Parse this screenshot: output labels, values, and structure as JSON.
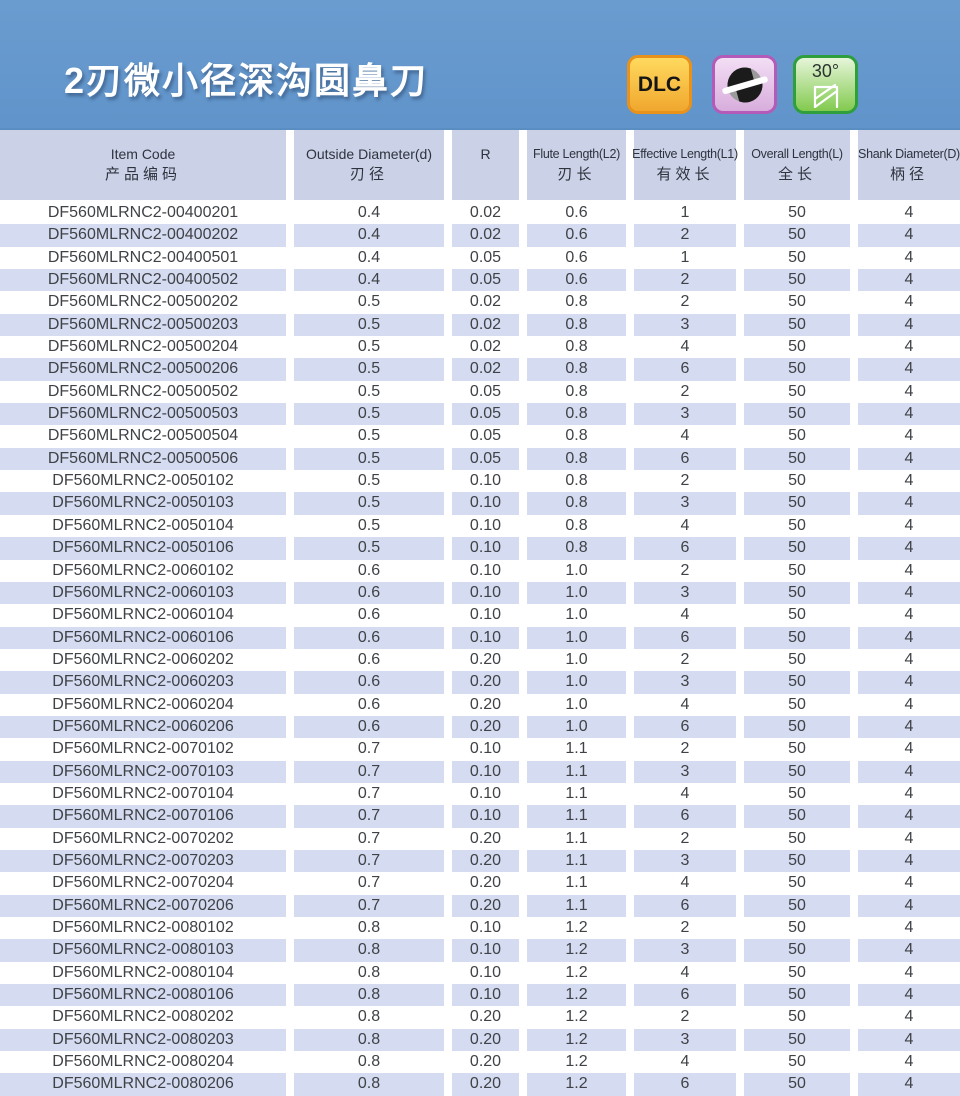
{
  "page": {
    "title": "2刃微小径深沟圆鼻刀"
  },
  "badges": {
    "dlc": {
      "label": "DLC"
    },
    "flute": {
      "icon": "two-flute-cross-section-icon"
    },
    "helix": {
      "label": "30°",
      "icon": "helix-angle-icon"
    }
  },
  "colors": {
    "banner_blue": "#6598cc",
    "header_bg": "#cbd2e8",
    "row_stripe": "#d5dbf0",
    "dlc_orange": "#e8921c",
    "flute_purple": "#b45ab8",
    "helix_green": "#2f9e3c"
  },
  "table": {
    "columns": [
      {
        "en": "Item Code",
        "zh": "产品编码"
      },
      {
        "en": "Outside Diameter(d)",
        "zh": "刃径"
      },
      {
        "en": "R",
        "zh": ""
      },
      {
        "en": "Flute Length(L2)",
        "zh": "刃长"
      },
      {
        "en": "Effective Length(L1)",
        "zh": "有效长"
      },
      {
        "en": "Overall Length(L)",
        "zh": "全长"
      },
      {
        "en": "Shank Diameter(D)",
        "zh": "柄径"
      }
    ],
    "rows": [
      [
        "DF560MLRNC2-00400201",
        "0.4",
        "0.02",
        "0.6",
        "1",
        "50",
        "4"
      ],
      [
        "DF560MLRNC2-00400202",
        "0.4",
        "0.02",
        "0.6",
        "2",
        "50",
        "4"
      ],
      [
        "DF560MLRNC2-00400501",
        "0.4",
        "0.05",
        "0.6",
        "1",
        "50",
        "4"
      ],
      [
        "DF560MLRNC2-00400502",
        "0.4",
        "0.05",
        "0.6",
        "2",
        "50",
        "4"
      ],
      [
        "DF560MLRNC2-00500202",
        "0.5",
        "0.02",
        "0.8",
        "2",
        "50",
        "4"
      ],
      [
        "DF560MLRNC2-00500203",
        "0.5",
        "0.02",
        "0.8",
        "3",
        "50",
        "4"
      ],
      [
        "DF560MLRNC2-00500204",
        "0.5",
        "0.02",
        "0.8",
        "4",
        "50",
        "4"
      ],
      [
        "DF560MLRNC2-00500206",
        "0.5",
        "0.02",
        "0.8",
        "6",
        "50",
        "4"
      ],
      [
        "DF560MLRNC2-00500502",
        "0.5",
        "0.05",
        "0.8",
        "2",
        "50",
        "4"
      ],
      [
        "DF560MLRNC2-00500503",
        "0.5",
        "0.05",
        "0.8",
        "3",
        "50",
        "4"
      ],
      [
        "DF560MLRNC2-00500504",
        "0.5",
        "0.05",
        "0.8",
        "4",
        "50",
        "4"
      ],
      [
        "DF560MLRNC2-00500506",
        "0.5",
        "0.05",
        "0.8",
        "6",
        "50",
        "4"
      ],
      [
        "DF560MLRNC2-0050102",
        "0.5",
        "0.10",
        "0.8",
        "2",
        "50",
        "4"
      ],
      [
        "DF560MLRNC2-0050103",
        "0.5",
        "0.10",
        "0.8",
        "3",
        "50",
        "4"
      ],
      [
        "DF560MLRNC2-0050104",
        "0.5",
        "0.10",
        "0.8",
        "4",
        "50",
        "4"
      ],
      [
        "DF560MLRNC2-0050106",
        "0.5",
        "0.10",
        "0.8",
        "6",
        "50",
        "4"
      ],
      [
        "DF560MLRNC2-0060102",
        "0.6",
        "0.10",
        "1.0",
        "2",
        "50",
        "4"
      ],
      [
        "DF560MLRNC2-0060103",
        "0.6",
        "0.10",
        "1.0",
        "3",
        "50",
        "4"
      ],
      [
        "DF560MLRNC2-0060104",
        "0.6",
        "0.10",
        "1.0",
        "4",
        "50",
        "4"
      ],
      [
        "DF560MLRNC2-0060106",
        "0.6",
        "0.10",
        "1.0",
        "6",
        "50",
        "4"
      ],
      [
        "DF560MLRNC2-0060202",
        "0.6",
        "0.20",
        "1.0",
        "2",
        "50",
        "4"
      ],
      [
        "DF560MLRNC2-0060203",
        "0.6",
        "0.20",
        "1.0",
        "3",
        "50",
        "4"
      ],
      [
        "DF560MLRNC2-0060204",
        "0.6",
        "0.20",
        "1.0",
        "4",
        "50",
        "4"
      ],
      [
        "DF560MLRNC2-0060206",
        "0.6",
        "0.20",
        "1.0",
        "6",
        "50",
        "4"
      ],
      [
        "DF560MLRNC2-0070102",
        "0.7",
        "0.10",
        "1.1",
        "2",
        "50",
        "4"
      ],
      [
        "DF560MLRNC2-0070103",
        "0.7",
        "0.10",
        "1.1",
        "3",
        "50",
        "4"
      ],
      [
        "DF560MLRNC2-0070104",
        "0.7",
        "0.10",
        "1.1",
        "4",
        "50",
        "4"
      ],
      [
        "DF560MLRNC2-0070106",
        "0.7",
        "0.10",
        "1.1",
        "6",
        "50",
        "4"
      ],
      [
        "DF560MLRNC2-0070202",
        "0.7",
        "0.20",
        "1.1",
        "2",
        "50",
        "4"
      ],
      [
        "DF560MLRNC2-0070203",
        "0.7",
        "0.20",
        "1.1",
        "3",
        "50",
        "4"
      ],
      [
        "DF560MLRNC2-0070204",
        "0.7",
        "0.20",
        "1.1",
        "4",
        "50",
        "4"
      ],
      [
        "DF560MLRNC2-0070206",
        "0.7",
        "0.20",
        "1.1",
        "6",
        "50",
        "4"
      ],
      [
        "DF560MLRNC2-0080102",
        "0.8",
        "0.10",
        "1.2",
        "2",
        "50",
        "4"
      ],
      [
        "DF560MLRNC2-0080103",
        "0.8",
        "0.10",
        "1.2",
        "3",
        "50",
        "4"
      ],
      [
        "DF560MLRNC2-0080104",
        "0.8",
        "0.10",
        "1.2",
        "4",
        "50",
        "4"
      ],
      [
        "DF560MLRNC2-0080106",
        "0.8",
        "0.10",
        "1.2",
        "6",
        "50",
        "4"
      ],
      [
        "DF560MLRNC2-0080202",
        "0.8",
        "0.20",
        "1.2",
        "2",
        "50",
        "4"
      ],
      [
        "DF560MLRNC2-0080203",
        "0.8",
        "0.20",
        "1.2",
        "3",
        "50",
        "4"
      ],
      [
        "DF560MLRNC2-0080204",
        "0.8",
        "0.20",
        "1.2",
        "4",
        "50",
        "4"
      ],
      [
        "DF560MLRNC2-0080206",
        "0.8",
        "0.20",
        "1.2",
        "6",
        "50",
        "4"
      ]
    ]
  }
}
